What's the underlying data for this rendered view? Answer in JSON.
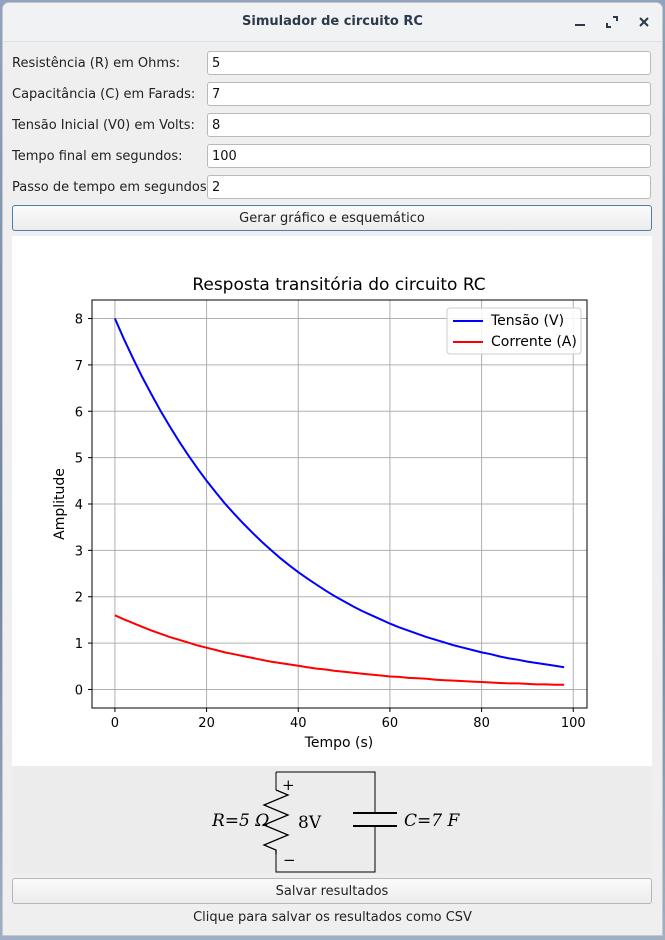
{
  "window": {
    "title": "Simulador de circuito RC",
    "controls": [
      "minimize-icon",
      "maximize-icon",
      "close-icon"
    ]
  },
  "form": {
    "resistance": {
      "label": "Resistência (R) em Ohms:",
      "value": "5"
    },
    "capacitance": {
      "label": "Capacitância (C) em Farads:",
      "value": "7"
    },
    "voltage": {
      "label": "Tensão Inicial (V0) em Volts:",
      "value": "8"
    },
    "final_time": {
      "label": "Tempo final em segundos:",
      "value": "100"
    },
    "time_step": {
      "label": "Passo de tempo em segundos:",
      "value": "2"
    }
  },
  "generate_button": "Gerar gráfico e esquemático",
  "chart_data": {
    "type": "line",
    "title": "Resposta transitória do circuito RC",
    "xlabel": "Tempo (s)",
    "ylabel": "Amplitude",
    "xlim": [
      -5,
      103
    ],
    "ylim": [
      -0.4,
      8.4
    ],
    "xticks": [
      0,
      20,
      40,
      60,
      80,
      100
    ],
    "yticks": [
      0,
      1,
      2,
      3,
      4,
      5,
      6,
      7,
      8
    ],
    "grid": true,
    "legend_position": "top-right",
    "x": [
      0,
      2,
      4,
      6,
      8,
      10,
      12,
      14,
      16,
      18,
      20,
      22,
      24,
      26,
      28,
      30,
      32,
      34,
      36,
      38,
      40,
      42,
      44,
      46,
      48,
      50,
      52,
      54,
      56,
      58,
      60,
      62,
      64,
      66,
      68,
      70,
      72,
      74,
      76,
      78,
      80,
      82,
      84,
      86,
      88,
      90,
      92,
      94,
      96,
      98
    ],
    "series": [
      {
        "name": "Tensão (V)",
        "color": "#0000ff",
        "values": [
          8.0,
          7.55,
          7.13,
          6.73,
          6.36,
          6.0,
          5.67,
          5.35,
          5.05,
          4.77,
          4.5,
          4.25,
          4.01,
          3.79,
          3.58,
          3.38,
          3.19,
          3.01,
          2.84,
          2.68,
          2.53,
          2.39,
          2.26,
          2.13,
          2.01,
          1.9,
          1.79,
          1.69,
          1.6,
          1.51,
          1.42,
          1.34,
          1.27,
          1.2,
          1.13,
          1.07,
          1.01,
          0.95,
          0.9,
          0.85,
          0.8,
          0.76,
          0.71,
          0.67,
          0.64,
          0.6,
          0.57,
          0.54,
          0.51,
          0.48
        ]
      },
      {
        "name": "Corrente (A)",
        "color": "#ff0000",
        "values": [
          1.6,
          1.51,
          1.43,
          1.35,
          1.27,
          1.2,
          1.13,
          1.07,
          1.01,
          0.95,
          0.9,
          0.85,
          0.8,
          0.76,
          0.72,
          0.68,
          0.64,
          0.6,
          0.57,
          0.54,
          0.51,
          0.48,
          0.45,
          0.43,
          0.4,
          0.38,
          0.36,
          0.34,
          0.32,
          0.3,
          0.28,
          0.27,
          0.25,
          0.24,
          0.23,
          0.21,
          0.2,
          0.19,
          0.18,
          0.17,
          0.16,
          0.15,
          0.14,
          0.13,
          0.13,
          0.12,
          0.11,
          0.11,
          0.1,
          0.1
        ]
      }
    ]
  },
  "schematic": {
    "resistor_label": "R=5 Ω",
    "capacitor_label": "C=7 F",
    "voltage_label": "8V",
    "plus": "+",
    "minus": "−"
  },
  "save_button": "Salvar resultados",
  "status_text": "Clique para salvar os resultados como CSV"
}
